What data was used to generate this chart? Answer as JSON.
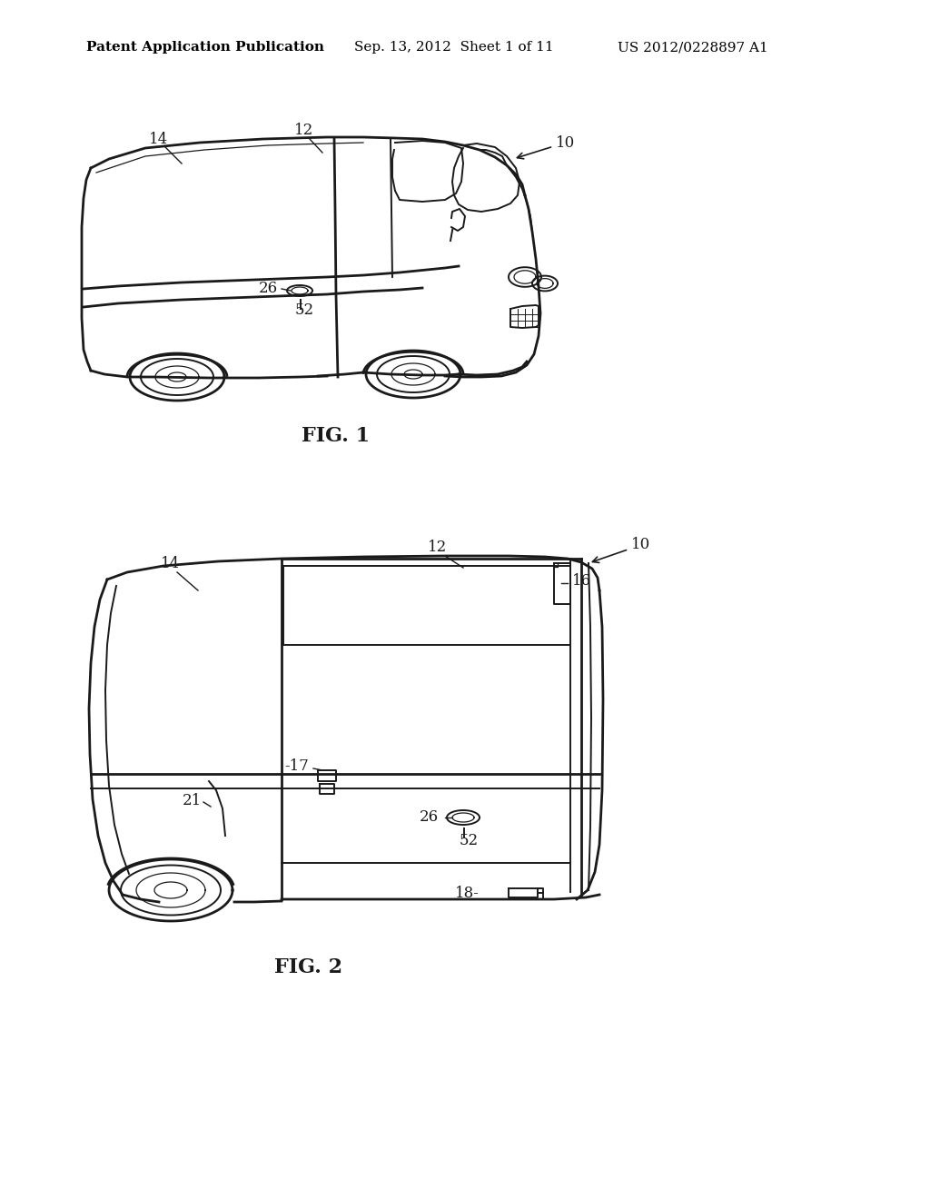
{
  "bg_color": "#ffffff",
  "header_text": "Patent Application Publication",
  "header_date": "Sep. 13, 2012  Sheet 1 of 11",
  "header_patent": "US 2012/0228897 A1",
  "fig1_label": "FIG. 1",
  "fig2_label": "FIG. 2",
  "text_color": "#000000",
  "line_color": "#1a1a1a",
  "header_fontsize": 11,
  "annotation_fontsize": 12,
  "fig_label_fontsize": 16,
  "lw_main": 2.0,
  "lw_med": 1.4,
  "lw_thin": 0.9
}
